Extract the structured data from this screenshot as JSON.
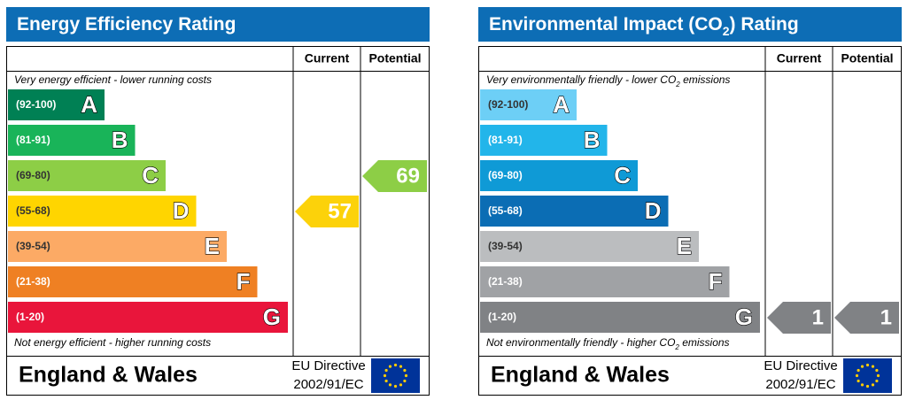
{
  "panels": [
    {
      "title": [
        "Energy Efficiency Rating"
      ],
      "columns": [
        "Current",
        "Potential"
      ],
      "top_note": [
        "Very energy efficient - lower running costs"
      ],
      "bottom_note": [
        "Not energy efficient - higher running costs"
      ],
      "bands": [
        {
          "range": "(92-100)",
          "letter": "A",
          "color": "#008054"
        },
        {
          "range": "(81-91)",
          "letter": "B",
          "color": "#19b459"
        },
        {
          "range": "(69-80)",
          "letter": "C",
          "color": "#8dce46"
        },
        {
          "range": "(55-68)",
          "letter": "D",
          "color": "#ffd500"
        },
        {
          "range": "(39-54)",
          "letter": "E",
          "color": "#fcaa65"
        },
        {
          "range": "(21-38)",
          "letter": "F",
          "color": "#ef8023"
        },
        {
          "range": "(1-20)",
          "letter": "G",
          "color": "#e9153b"
        }
      ],
      "current": {
        "value": 57,
        "color": "#fcd20a"
      },
      "potential": {
        "value": 69,
        "color": "#8dce46"
      },
      "footer": "England & Wales",
      "directive": [
        "EU Directive",
        "2002/91/EC"
      ]
    },
    {
      "title": [
        "Environmental Impact (CO",
        "2",
        ") Rating"
      ],
      "columns": [
        "Current",
        "Potential"
      ],
      "top_note": [
        "Very environmentally friendly - lower CO",
        "2",
        " emissions"
      ],
      "bottom_note": [
        "Not environmentally friendly - higher CO",
        "2",
        " emissions"
      ],
      "bands": [
        {
          "range": "(92-100)",
          "letter": "A",
          "color": "#6dcff6"
        },
        {
          "range": "(81-91)",
          "letter": "B",
          "color": "#22b5ea"
        },
        {
          "range": "(69-80)",
          "letter": "C",
          "color": "#0f9ad6"
        },
        {
          "range": "(55-68)",
          "letter": "D",
          "color": "#0b6db4"
        },
        {
          "range": "(39-54)",
          "letter": "E",
          "color": "#bbbdbf"
        },
        {
          "range": "(21-38)",
          "letter": "F",
          "color": "#a0a2a5"
        },
        {
          "range": "(1-20)",
          "letter": "G",
          "color": "#808285"
        }
      ],
      "current": {
        "value": 1,
        "color": "#808285"
      },
      "potential": {
        "value": 1,
        "color": "#808285"
      },
      "footer": "England & Wales",
      "directive": [
        "EU Directive",
        "2002/91/EC"
      ]
    }
  ]
}
